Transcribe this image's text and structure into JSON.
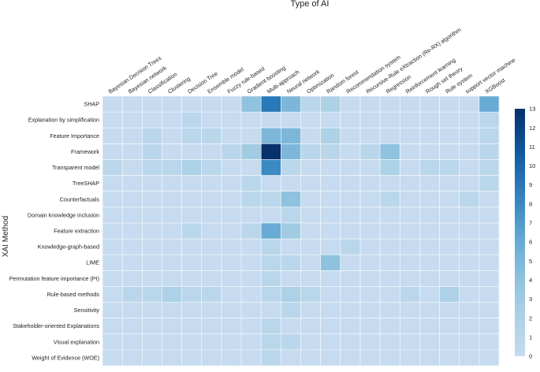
{
  "chart_data": {
    "type": "heatmap",
    "title": "Type of AI",
    "xlabel": "Type of AI",
    "ylabel": "XAI Method",
    "x_categories": [
      "Bayesian Decision Trees",
      "Bayesian network",
      "Classification",
      "Clustering",
      "Decision Tree",
      "Ensemble model",
      "Fuzzy rule-based",
      "Gradient boosting",
      "Multi-approach",
      "Neural network",
      "Optimization",
      "Random forest",
      "Recommendation system",
      "Recursive-Rule eXtraction (Re-RX) algorithm",
      "Regression",
      "Reinforcement learning",
      "Rough set theory",
      "Rule system",
      "support vector machine",
      "XGBoost"
    ],
    "y_categories": [
      "SHAP",
      "Explanation by simplification",
      "Feature Importance",
      "Framework",
      "Transparent model",
      "TreeSHAP",
      "Counterfactuals",
      "Domain knowledge inclusion",
      "Feature extraction",
      "Knowledge-graph-based",
      "LIME",
      "Permutation feature importance (PI)",
      "Rule-based methods",
      "Sensitivity",
      "Stakeholder-oriented Explanations",
      "Visual explanation",
      "Weight of Evidence (WOE)"
    ],
    "values": [
      [
        0,
        0,
        0,
        0,
        0,
        0,
        0,
        4,
        9,
        5,
        1,
        2,
        0,
        0,
        0,
        0,
        0,
        0,
        0,
        6
      ],
      [
        0,
        0,
        0,
        0,
        1,
        0,
        0,
        0,
        0,
        0,
        0,
        0,
        0,
        0,
        0,
        0,
        0,
        0,
        0,
        1
      ],
      [
        0,
        0,
        1,
        0,
        1,
        1,
        0,
        0,
        5,
        5,
        0,
        2,
        0,
        0,
        0,
        0,
        0,
        0,
        0,
        1
      ],
      [
        0,
        0,
        1,
        0,
        0,
        0,
        1,
        3,
        13,
        5,
        1,
        1,
        0,
        1,
        4,
        0,
        0,
        0,
        0,
        1
      ],
      [
        1,
        0,
        1,
        1,
        2,
        1,
        0,
        0,
        8,
        1,
        0,
        0,
        0,
        0,
        2,
        0,
        1,
        1,
        0,
        1
      ],
      [
        0,
        0,
        0,
        0,
        0,
        0,
        0,
        1,
        0,
        0,
        0,
        0,
        0,
        0,
        0,
        0,
        0,
        0,
        0,
        1
      ],
      [
        0,
        0,
        0,
        0,
        0,
        0,
        0,
        1,
        1,
        4,
        0,
        0,
        0,
        0,
        1,
        0,
        0,
        0,
        1,
        0
      ],
      [
        0,
        0,
        0,
        0,
        0,
        0,
        0,
        0,
        0,
        1,
        0,
        0,
        0,
        0,
        0,
        0,
        0,
        0,
        0,
        0
      ],
      [
        0,
        0,
        0,
        0,
        1,
        0,
        0,
        1,
        6,
        3,
        0,
        0,
        0,
        0,
        0,
        0,
        0,
        0,
        0,
        0
      ],
      [
        0,
        0,
        0,
        0,
        0,
        0,
        0,
        0,
        1,
        0,
        0,
        0,
        1,
        0,
        0,
        0,
        0,
        0,
        0,
        0
      ],
      [
        0,
        0,
        0,
        0,
        0,
        0,
        0,
        0,
        1,
        1,
        0,
        4,
        0,
        0,
        0,
        0,
        0,
        0,
        0,
        0
      ],
      [
        0,
        0,
        0,
        0,
        0,
        0,
        0,
        0,
        1,
        0,
        0,
        0,
        0,
        0,
        0,
        0,
        0,
        0,
        0,
        0
      ],
      [
        0,
        1,
        1,
        2,
        1,
        1,
        0,
        0,
        1,
        2,
        1,
        0,
        0,
        0,
        0,
        1,
        0,
        2,
        0,
        0
      ],
      [
        0,
        0,
        0,
        0,
        0,
        0,
        0,
        0,
        0,
        1,
        0,
        0,
        0,
        0,
        0,
        0,
        0,
        0,
        0,
        0
      ],
      [
        0,
        0,
        0,
        0,
        0,
        0,
        0,
        0,
        1,
        0,
        0,
        0,
        0,
        0,
        0,
        0,
        0,
        0,
        0,
        0
      ],
      [
        0,
        0,
        0,
        0,
        0,
        0,
        0,
        0,
        1,
        1,
        0,
        0,
        0,
        0,
        0,
        0,
        0,
        0,
        0,
        0
      ],
      [
        0,
        0,
        0,
        0,
        0,
        0,
        0,
        0,
        1,
        0,
        0,
        0,
        0,
        0,
        0,
        0,
        0,
        0,
        0,
        0
      ]
    ],
    "color_range": [
      0,
      13
    ],
    "colorbar_ticks": [
      0,
      1,
      2,
      3,
      4,
      5,
      6,
      7,
      8,
      9,
      10,
      11,
      12,
      13
    ],
    "colormap": {
      "low": "#c6dbef",
      "high": "#08306b"
    },
    "grid": true,
    "legend_placement": "right"
  }
}
